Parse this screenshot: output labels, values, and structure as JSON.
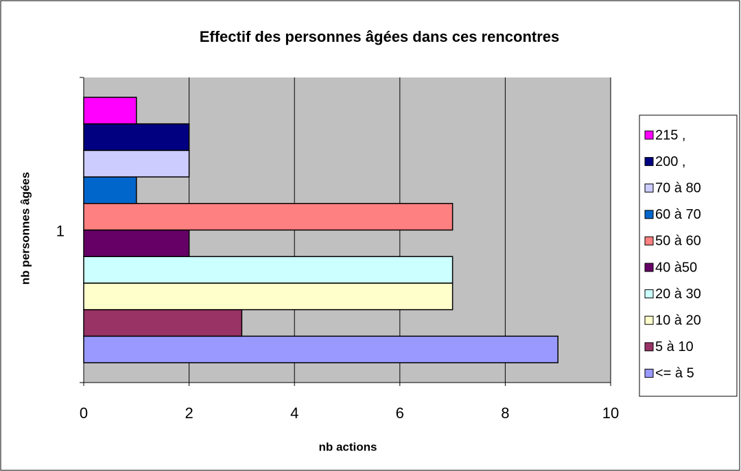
{
  "chart_data": {
    "type": "bar",
    "orientation": "horizontal",
    "title": "Effectif des personnes âgées dans ces rencontres",
    "xlabel": "nb actions",
    "ylabel": "nb personnes âgées",
    "categories": [
      "1"
    ],
    "series": [
      {
        "name": "<= à 5",
        "color": "#9999ff",
        "values": [
          9
        ]
      },
      {
        "name": "5 à 10",
        "color": "#993366",
        "values": [
          3
        ]
      },
      {
        "name": "10 à 20",
        "color": "#ffffcc",
        "values": [
          7
        ]
      },
      {
        "name": "20 à 30",
        "color": "#ccffff",
        "values": [
          7
        ]
      },
      {
        "name": "40 à50",
        "color": "#660066",
        "values": [
          2
        ]
      },
      {
        "name": "50 à 60",
        "color": "#ff8080",
        "values": [
          7
        ]
      },
      {
        "name": "60 à 70",
        "color": "#0066cc",
        "values": [
          1
        ]
      },
      {
        "name": "70 à 80",
        "color": "#ccccff",
        "values": [
          2
        ]
      },
      {
        "name": "200 ,",
        "color": "#000080",
        "values": [
          2
        ]
      },
      {
        "name": "215 ,",
        "color": "#ff00ff",
        "values": [
          1
        ]
      }
    ],
    "xlim": [
      0,
      10
    ],
    "xticks": [
      0,
      2,
      4,
      6,
      8,
      10
    ],
    "grid": true,
    "legend": "right"
  }
}
